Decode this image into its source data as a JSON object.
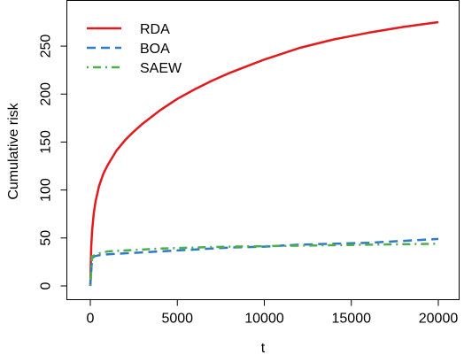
{
  "chart_data": {
    "type": "line",
    "title": "",
    "xlabel": "t",
    "ylabel": "Cumulative risk",
    "xlim": [
      0,
      20000
    ],
    "ylim": [
      0,
      275
    ],
    "x_ticks": [
      0,
      5000,
      10000,
      15000,
      20000
    ],
    "y_ticks": [
      0,
      50,
      100,
      150,
      200,
      250
    ],
    "x_tick_labels": [
      "0",
      "5000",
      "10000",
      "15000",
      "20000"
    ],
    "y_tick_labels": [
      "0",
      "50",
      "100",
      "150",
      "200",
      "250"
    ],
    "grid": false,
    "legend_position": "top-left",
    "series": [
      {
        "name": "RDA",
        "color": "#e31a1c",
        "dash": "solid",
        "x": [
          0,
          50,
          100,
          200,
          300,
          500,
          750,
          1000,
          1500,
          2000,
          2500,
          3000,
          4000,
          5000,
          6000,
          7000,
          8000,
          9000,
          10000,
          12000,
          14000,
          16000,
          18000,
          20000
        ],
        "y": [
          0,
          40,
          57,
          76,
          88,
          104,
          117,
          126,
          141,
          152,
          161,
          169,
          183,
          195,
          205,
          214,
          222,
          229,
          236,
          248,
          257,
          264,
          270,
          275
        ]
      },
      {
        "name": "BOA",
        "color": "#2f7bc8",
        "dash": "dashed",
        "x": [
          0,
          100,
          250,
          500,
          1000,
          2000,
          3000,
          4000,
          5000,
          6000,
          8000,
          10000,
          12000,
          14000,
          16000,
          18000,
          20000
        ],
        "y": [
          0,
          29,
          31,
          32,
          33,
          34,
          35,
          36,
          37,
          38,
          40,
          41,
          43,
          44,
          45,
          47,
          49
        ]
      },
      {
        "name": "SAEW",
        "color": "#4daf4a",
        "dash": "dotdash",
        "x": [
          0,
          100,
          250,
          500,
          1000,
          2000,
          3000,
          4000,
          5000,
          6000,
          8000,
          10000,
          12000,
          14000,
          16000,
          18000,
          20000
        ],
        "y": [
          0,
          31,
          32,
          34,
          36,
          37,
          38,
          39,
          39.5,
          40,
          41,
          41.5,
          42,
          42.5,
          43,
          43.5,
          44
        ]
      }
    ]
  }
}
